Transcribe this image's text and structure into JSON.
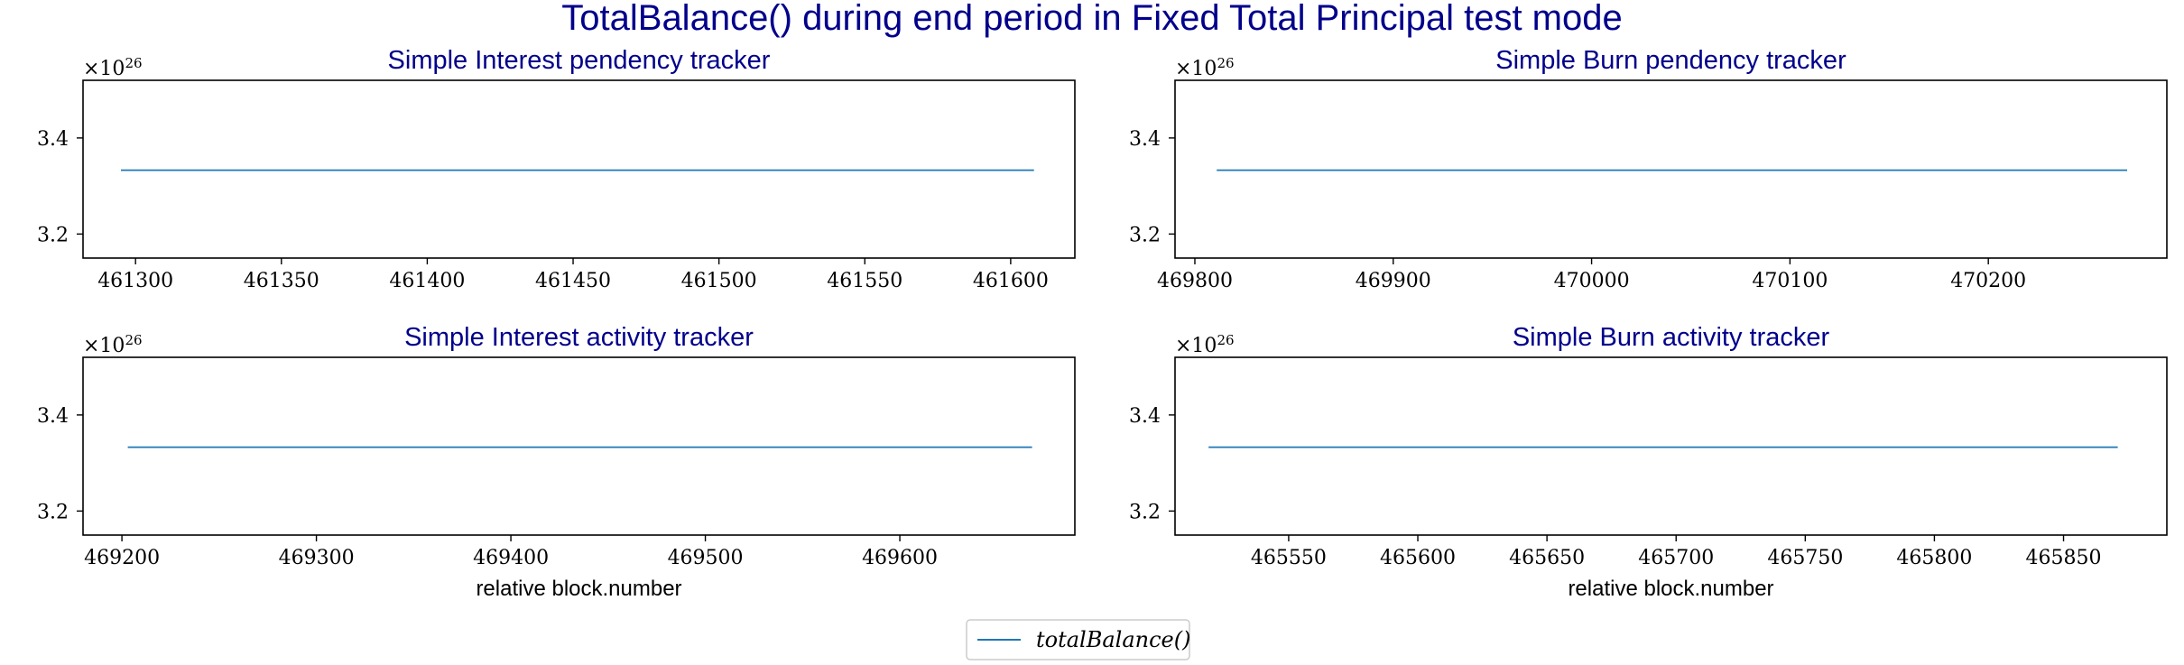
{
  "suptitle": "TotalBalance() during end period in Fixed Total Principal test mode",
  "legend": {
    "label": "totalBalance()",
    "color": "#1f77b4",
    "placement": "bottom-center"
  },
  "chart_data": [
    {
      "type": "line",
      "title": "Simple Interest pendency tracker",
      "xlabel": "",
      "ylabel": "",
      "y_offset_label": "×10",
      "y_offset_exponent": "26",
      "xlim": [
        461282,
        461622
      ],
      "ylim": [
        3.15,
        3.52
      ],
      "xticks": [
        461300,
        461350,
        461400,
        461450,
        461500,
        461550,
        461600
      ],
      "yticks": [
        3.2,
        3.4
      ],
      "series": [
        {
          "name": "totalBalance()",
          "x": [
            461295,
            461608
          ],
          "y": [
            3.333,
            3.333
          ]
        }
      ]
    },
    {
      "type": "line",
      "title": "Simple Burn pendency tracker",
      "xlabel": "",
      "ylabel": "",
      "y_offset_label": "×10",
      "y_offset_exponent": "26",
      "xlim": [
        469790,
        470290
      ],
      "ylim": [
        3.15,
        3.52
      ],
      "xticks": [
        469800,
        469900,
        470000,
        470100,
        470200
      ],
      "yticks": [
        3.2,
        3.4
      ],
      "series": [
        {
          "name": "totalBalance()",
          "x": [
            469811,
            470270
          ],
          "y": [
            3.333,
            3.333
          ]
        }
      ]
    },
    {
      "type": "line",
      "title": "Simple Interest activity tracker",
      "xlabel": "relative block.number",
      "ylabel": "",
      "y_offset_label": "×10",
      "y_offset_exponent": "26",
      "xlim": [
        469180,
        469690
      ],
      "ylim": [
        3.15,
        3.52
      ],
      "xticks": [
        469200,
        469300,
        469400,
        469500,
        469600
      ],
      "yticks": [
        3.2,
        3.4
      ],
      "series": [
        {
          "name": "totalBalance()",
          "x": [
            469203,
            469668
          ],
          "y": [
            3.333,
            3.333
          ]
        }
      ]
    },
    {
      "type": "line",
      "title": "Simple Burn activity tracker",
      "xlabel": "relative block.number",
      "ylabel": "",
      "y_offset_label": "×10",
      "y_offset_exponent": "26",
      "xlim": [
        465506,
        465890
      ],
      "ylim": [
        3.15,
        3.52
      ],
      "xticks": [
        465550,
        465600,
        465650,
        465700,
        465750,
        465800,
        465850
      ],
      "yticks": [
        3.2,
        3.4
      ],
      "series": [
        {
          "name": "totalBalance()",
          "x": [
            465519,
            465871
          ],
          "y": [
            3.333,
            3.333
          ]
        }
      ]
    }
  ]
}
